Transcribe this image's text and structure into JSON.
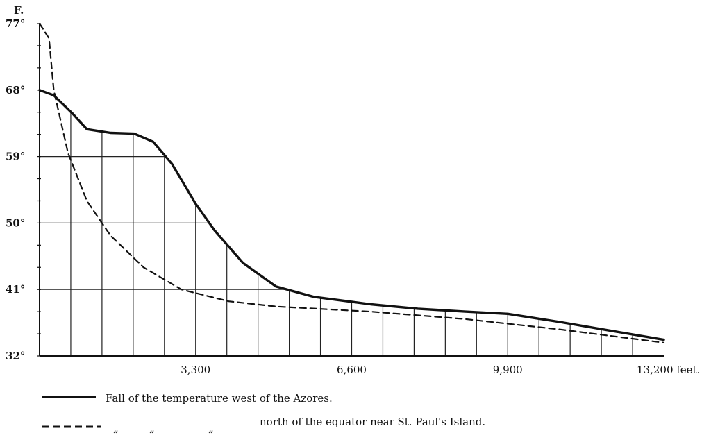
{
  "chart_data": {
    "type": "line",
    "y_unit_label": "F.",
    "x_unit_label": "13,200 feet.",
    "x_tick_labels": [
      "3,300",
      "6,600",
      "9,900"
    ],
    "y_tick_labels": [
      "77°",
      "68°",
      "59°",
      "50°",
      "41°",
      "32°"
    ],
    "xlim": [
      0,
      13200
    ],
    "ylim": [
      32,
      77
    ],
    "series": [
      {
        "name": "Fall of the temperature west of the Azores.",
        "style": "solid",
        "points": [
          [
            0,
            68
          ],
          [
            300,
            67.3
          ],
          [
            700,
            64.8
          ],
          [
            1000,
            62.7
          ],
          [
            1500,
            62.2
          ],
          [
            2000,
            62.1
          ],
          [
            2400,
            61
          ],
          [
            2800,
            58
          ],
          [
            3300,
            52.6
          ],
          [
            3700,
            49
          ],
          [
            4300,
            44.6
          ],
          [
            5000,
            41.4
          ],
          [
            5800,
            40
          ],
          [
            7000,
            39
          ],
          [
            8000,
            38.4
          ],
          [
            9000,
            38
          ],
          [
            9900,
            37.7
          ],
          [
            11000,
            36.6
          ],
          [
            12000,
            35.5
          ],
          [
            13200,
            34.2
          ]
        ]
      },
      {
        "name": "north of the equator near St. Paul's Island.",
        "legend_ditto": [
          "„",
          "„",
          "„"
        ],
        "style": "dashed",
        "points": [
          [
            0,
            77
          ],
          [
            200,
            75
          ],
          [
            300,
            68
          ],
          [
            600,
            59.5
          ],
          [
            1000,
            53
          ],
          [
            1500,
            48.3
          ],
          [
            2200,
            44
          ],
          [
            3000,
            41
          ],
          [
            4000,
            39.4
          ],
          [
            5000,
            38.7
          ],
          [
            7000,
            38
          ],
          [
            9000,
            37
          ],
          [
            11000,
            35.6
          ],
          [
            13200,
            33.8
          ]
        ]
      }
    ],
    "grid": true,
    "legend_position": "bottom-left",
    "colors": {
      "line": "#111111",
      "background": "#ffffff"
    }
  }
}
